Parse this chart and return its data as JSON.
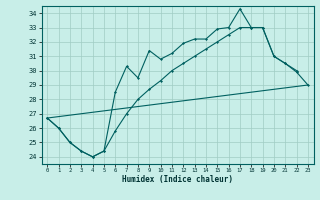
{
  "xlabel": "Humidex (Indice chaleur)",
  "bg_color": "#c8eee8",
  "grid_color": "#a0ccc4",
  "line_color": "#006060",
  "line1_x": [
    0,
    1,
    2,
    3,
    4,
    5,
    6,
    7,
    8,
    9,
    10,
    11,
    12,
    13,
    14,
    15,
    16,
    17,
    18,
    19,
    20,
    21,
    22
  ],
  "line1_y": [
    26.7,
    26.0,
    25.0,
    24.4,
    24.0,
    24.4,
    28.5,
    30.3,
    29.5,
    31.4,
    30.8,
    31.2,
    31.9,
    32.2,
    32.2,
    32.9,
    33.0,
    34.3,
    33.0,
    33.0,
    31.0,
    30.5,
    30.0
  ],
  "line2_x": [
    0,
    1,
    2,
    3,
    4,
    5,
    6,
    7,
    8,
    9,
    10,
    11,
    12,
    13,
    14,
    15,
    16,
    17,
    18,
    19,
    20,
    21,
    22,
    23
  ],
  "line2_y": [
    26.7,
    26.0,
    25.0,
    24.4,
    24.0,
    24.4,
    25.8,
    27.0,
    28.0,
    28.7,
    29.3,
    30.0,
    30.5,
    31.0,
    31.5,
    32.0,
    32.5,
    33.0,
    33.0,
    33.0,
    31.0,
    30.5,
    29.9,
    29.0
  ],
  "line3_x": [
    0,
    23
  ],
  "line3_y": [
    26.7,
    29.0
  ],
  "ylim": [
    23.5,
    34.5
  ],
  "xlim": [
    -0.5,
    23.5
  ],
  "yticks": [
    24,
    25,
    26,
    27,
    28,
    29,
    30,
    31,
    32,
    33,
    34
  ],
  "xticks": [
    0,
    1,
    2,
    3,
    4,
    5,
    6,
    7,
    8,
    9,
    10,
    11,
    12,
    13,
    14,
    15,
    16,
    17,
    18,
    19,
    20,
    21,
    22,
    23
  ]
}
